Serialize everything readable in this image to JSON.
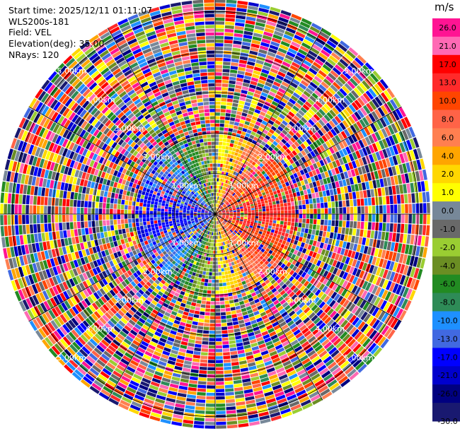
{
  "header": {
    "start_time": "Start time: 2025/12/11 01:11:07",
    "instrument": "WLS200s-181",
    "field": "Field: VEL",
    "elevation": "Elevation(deg): 35.00",
    "nrays": "NRays: 120"
  },
  "colorbar": {
    "unit": "m/s",
    "levels": [
      "26.0",
      "21.0",
      "17.0",
      "13.0",
      "10.0",
      "8.0",
      "6.0",
      "4.0",
      "2.0",
      "1.0",
      "0.0",
      "-1.0",
      "-2.0",
      "-4.0",
      "-6.0",
      "-8.0",
      "-10.0",
      "-13.0",
      "-17.0",
      "-21.0",
      "-26.0",
      "-30.0"
    ],
    "colors": [
      "#ff1493",
      "#ff69b4",
      "#ff0000",
      "#ff2a2a",
      "#ff4500",
      "#ff6347",
      "#ff7f50",
      "#ffa500",
      "#ffd700",
      "#ffff00",
      "#778899",
      "#696969",
      "#9acd32",
      "#6b8e23",
      "#228b22",
      "#2e8b57",
      "#1e90ff",
      "#4169e1",
      "#0000ff",
      "#0000cd",
      "#000080",
      "#191970"
    ]
  },
  "chart_data": {
    "type": "heatmap",
    "projection": "polar PPI",
    "field": "VEL",
    "units": "m/s",
    "elevation_deg": 35.0,
    "nrays": 120,
    "range_rings_km": [
      1.0,
      2.0,
      3.0,
      4.0,
      5.0
    ],
    "ring_labels": [
      "1.00km",
      "2.00km",
      "3.00km",
      "4.00km",
      "5.00km"
    ],
    "max_range_km": 5.3,
    "pattern": "coherent near-range velocity (negative blue/green to west & south-west, positive red/pink to east, yellow/orange near north & south) transitioning to random noise beyond ~2 km"
  }
}
